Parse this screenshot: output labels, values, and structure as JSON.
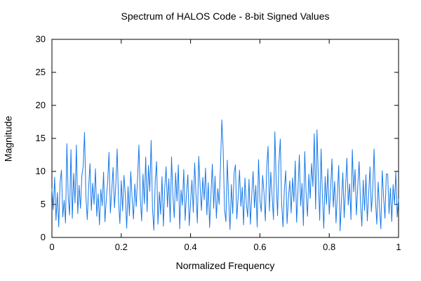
{
  "colors": {
    "background": "#ffffff",
    "axis": "#000000",
    "text": "#000000",
    "line": "#1778E8"
  },
  "chart_data": {
    "type": "line",
    "title": "Spectrum of HALOS Code - 8-bit Signed Values",
    "xlabel": "Normalized Frequency",
    "ylabel": "Magnitude",
    "xlim": [
      0,
      1
    ],
    "ylim": [
      0,
      30
    ],
    "x_ticks": [
      0,
      0.2,
      0.4,
      0.6,
      0.8,
      1
    ],
    "x_tick_labels": [
      "0",
      "0.2",
      "0.4",
      "0.6",
      "0.8",
      "1"
    ],
    "y_ticks": [
      0,
      5,
      10,
      15,
      20,
      25,
      30
    ],
    "y_tick_labels": [
      "0",
      "5",
      "10",
      "15",
      "20",
      "25",
      "30"
    ],
    "grid": false,
    "legend": "none",
    "tick_style": "inward-mirrored",
    "line_color": "#1778E8",
    "n_points": 256,
    "x_spacing": "256 evenly spaced points from 0 to 1",
    "values": [
      7.4,
      4.2,
      9.1,
      2.6,
      6.8,
      1.6,
      8.3,
      10.2,
      3.1,
      5.6,
      2.2,
      14.2,
      6.1,
      3.4,
      13.3,
      2.9,
      9.7,
      5.2,
      14.0,
      3.6,
      7.9,
      4.4,
      9.3,
      10.8,
      15.9,
      6.2,
      2.7,
      7.6,
      11.2,
      4.1,
      8.2,
      5.0,
      10.4,
      3.2,
      6.6,
      1.9,
      7.3,
      4.8,
      9.9,
      2.4,
      5.8,
      8.4,
      12.9,
      3.7,
      7.1,
      10.6,
      4.5,
      8.0,
      13.4,
      5.4,
      2.1,
      8.6,
      4.0,
      9.4,
      6.4,
      1.4,
      7.7,
      3.3,
      10.0,
      5.9,
      2.8,
      8.1,
      4.7,
      9.0,
      14.0,
      6.0,
      2.5,
      9.6,
      5.1,
      12.2,
      3.9,
      10.9,
      7.0,
      14.7,
      4.3,
      1.1,
      8.5,
      11.5,
      2.0,
      6.9,
      3.5,
      9.2,
      1.7,
      7.5,
      10.7,
      4.6,
      8.9,
      2.3,
      12.2,
      6.3,
      3.0,
      9.8,
      5.5,
      11.0,
      1.3,
      7.2,
      4.9,
      10.3,
      2.6,
      6.7,
      9.5,
      1.8,
      5.3,
      8.7,
      3.8,
      11.3,
      6.5,
      2.2,
      12.3,
      7.8,
      4.1,
      9.1,
      5.7,
      10.5,
      3.4,
      8.3,
      1.5,
      6.6,
      11.1,
      4.4,
      9.3,
      2.9,
      7.4,
      5.0,
      10.8,
      17.8,
      13.2,
      4.2,
      2.4,
      11.7,
      5.8,
      1.2,
      8.0,
      3.6,
      9.7,
      11.0,
      2.8,
      6.1,
      10.2,
      4.7,
      7.6,
      1.9,
      9.0,
      5.2,
      3.1,
      8.8,
      2.0,
      6.4,
      10.0,
      4.5,
      7.9,
      1.6,
      11.8,
      5.6,
      3.9,
      9.4,
      6.8,
      2.5,
      10.6,
      13.8,
      4.0,
      9.9,
      6.2,
      2.7,
      16.0,
      8.4,
      3.3,
      11.4,
      14.9,
      5.1,
      1.6,
      7.3,
      10.1,
      2.1,
      6.0,
      8.6,
      3.7,
      9.0,
      5.4,
      11.6,
      2.3,
      7.0,
      12.5,
      4.8,
      8.2,
      1.8,
      13.0,
      6.6,
      3.2,
      9.6,
      5.9,
      11.2,
      7.7,
      15.7,
      4.3,
      16.3,
      8.9,
      2.6,
      13.4,
      6.3,
      1.4,
      9.2,
      5.0,
      10.4,
      3.5,
      7.1,
      11.9,
      4.6,
      8.5,
      2.2,
      6.7,
      10.9,
      1.0,
      5.5,
      9.8,
      3.0,
      7.4,
      12.0,
      4.9,
      8.1,
      2.7,
      13.3,
      6.9,
      10.3,
      3.4,
      7.8,
      11.5,
      5.3,
      1.7,
      8.7,
      4.1,
      9.5,
      2.5,
      6.5,
      10.7,
      3.9,
      7.2,
      13.4,
      5.7,
      2.0,
      8.4,
      4.4,
      1.3,
      10.1,
      6.1,
      2.9,
      9.6,
      9.6,
      3.6,
      7.5,
      2.4,
      8.0,
      5.1,
      9.9,
      3.1,
      5.8
    ]
  }
}
